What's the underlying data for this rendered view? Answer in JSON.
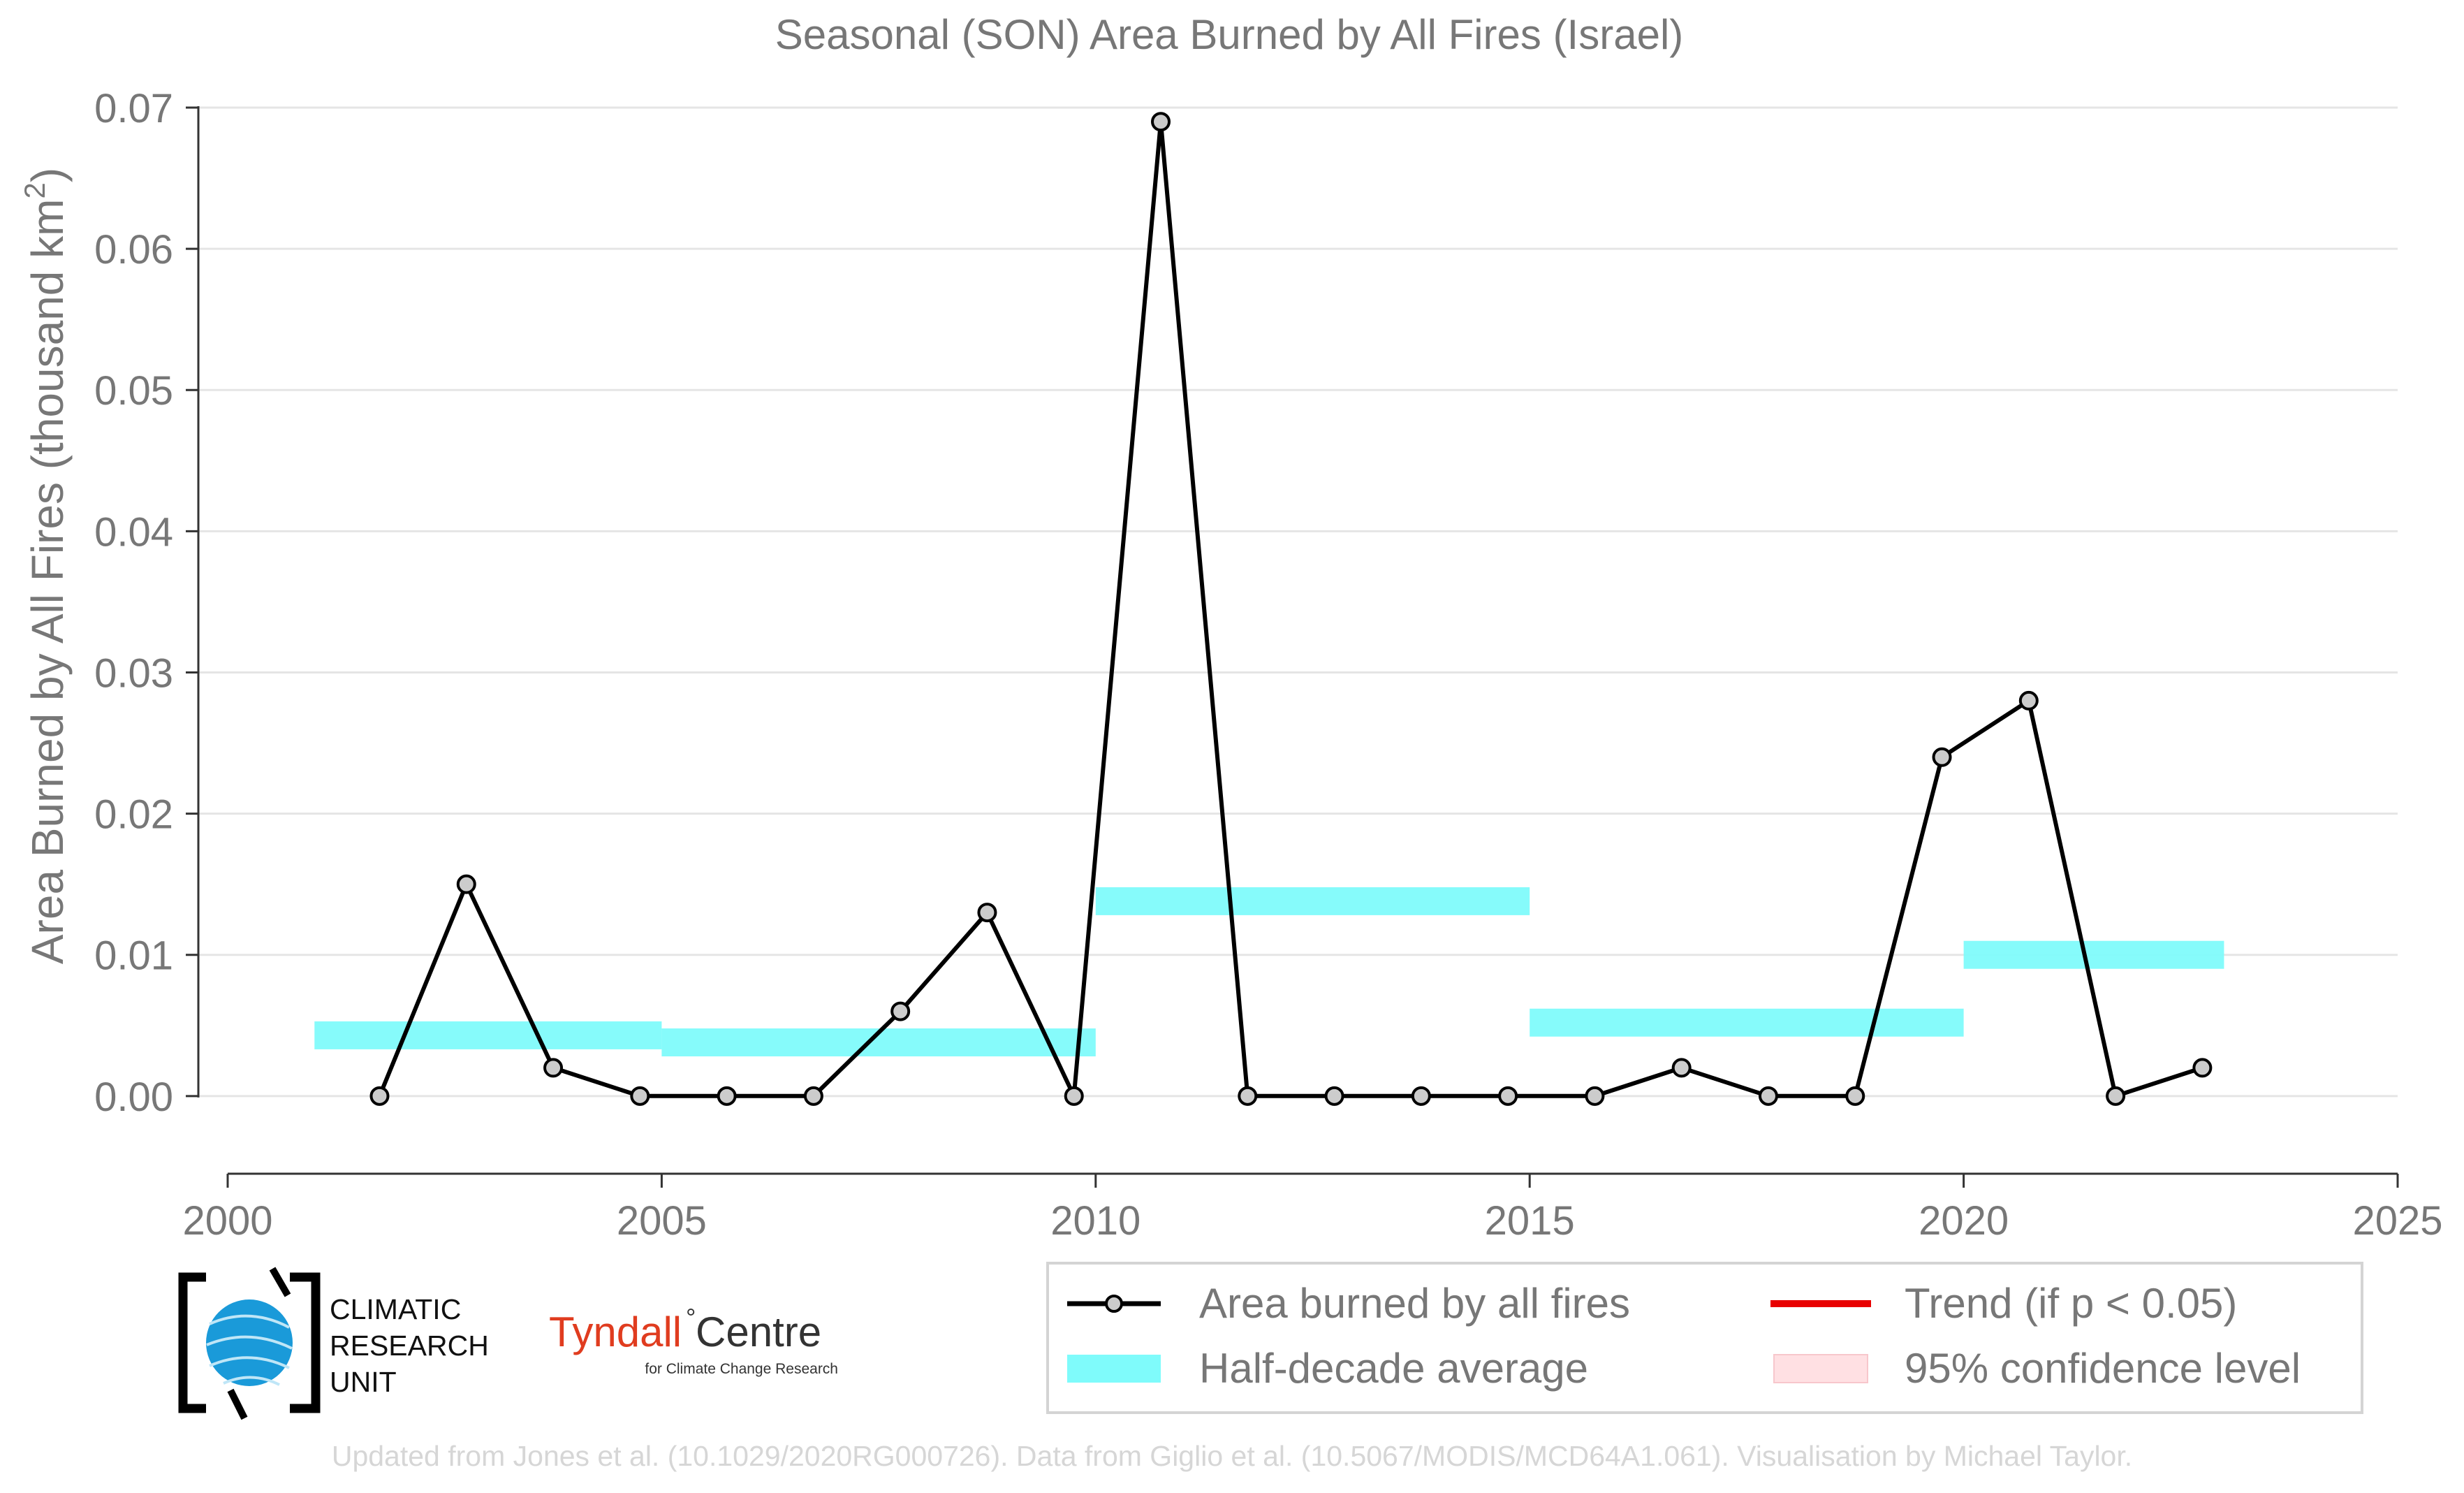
{
  "chart_data": {
    "type": "line",
    "title": "Seasonal (SON) Area Burned by All Fires (Israel)",
    "ylabel_main": "Area Burned by All Fires (thousand km",
    "ylabel_sup": "2",
    "ylabel_close": ")",
    "xlabel": "",
    "xlim": [
      2000,
      2025
    ],
    "ylim": [
      -0.0055,
      0.07
    ],
    "x_ticks": [
      2000,
      2005,
      2010,
      2015,
      2020,
      2025
    ],
    "y_ticks": [
      0.0,
      0.01,
      0.02,
      0.03,
      0.04,
      0.05,
      0.06,
      0.07
    ],
    "y_tick_labels": [
      "0.00",
      "0.01",
      "0.02",
      "0.03",
      "0.04",
      "0.05",
      "0.06",
      "0.07"
    ],
    "grid": "horizontal",
    "series": [
      {
        "name": "Area burned by all fires",
        "color": "#000000",
        "marker_fill": "#cccccc",
        "x": [
          2001.75,
          2002.75,
          2003.75,
          2004.75,
          2005.75,
          2006.75,
          2007.75,
          2008.75,
          2009.75,
          2010.75,
          2011.75,
          2012.75,
          2013.75,
          2014.75,
          2015.75,
          2016.75,
          2017.75,
          2018.75,
          2019.75,
          2020.75,
          2021.75,
          2022.75
        ],
        "values": [
          0.0,
          0.015,
          0.002,
          0.0,
          0.0,
          0.0,
          0.006,
          0.013,
          0.0,
          0.069,
          0.0,
          0.0,
          0.0,
          0.0,
          0.0,
          0.002,
          0.0,
          0.0,
          0.024,
          0.028,
          0.0,
          0.002
        ]
      },
      {
        "name": "Half-decade average",
        "color": "#7ffbfb",
        "segments": [
          {
            "x0": 2001,
            "x1": 2005,
            "value": 0.0043
          },
          {
            "x0": 2005,
            "x1": 2010,
            "value": 0.0038
          },
          {
            "x0": 2010,
            "x1": 2015,
            "value": 0.0138
          },
          {
            "x0": 2015,
            "x1": 2020,
            "value": 0.0052
          },
          {
            "x0": 2020,
            "x1": 2023,
            "value": 0.01
          }
        ]
      }
    ],
    "legend": {
      "position": "bottom-right",
      "items": [
        {
          "label": "Area burned by all fires",
          "kind": "line-marker",
          "color": "#000000"
        },
        {
          "label": "Trend (if p < 0.05)",
          "kind": "line",
          "color": "#e80000"
        },
        {
          "label": "Half-decade average",
          "kind": "band",
          "color": "#7ffbfb"
        },
        {
          "label": "95% confidence level",
          "kind": "band",
          "color": "#ffe0e3"
        }
      ]
    }
  },
  "logos": {
    "cru_lines": [
      "CLIMATIC",
      "RESEARCH",
      "UNIT"
    ],
    "tyndall_main": "Tyndall",
    "tyndall_degree": "°",
    "tyndall_centre": "Centre",
    "tyndall_sub": "for Climate Change Research"
  },
  "footer": "Updated from Jones et al. (10.1029/2020RG000726). Data from Giglio et al. (10.5067/MODIS/MCD64A1.061). Visualisation by Michael Taylor.",
  "colors": {
    "text_gray": "#777777",
    "grid": "#e5e5e5",
    "footer": "#d6d6d6",
    "tyndall_red": "#e03c1f"
  }
}
